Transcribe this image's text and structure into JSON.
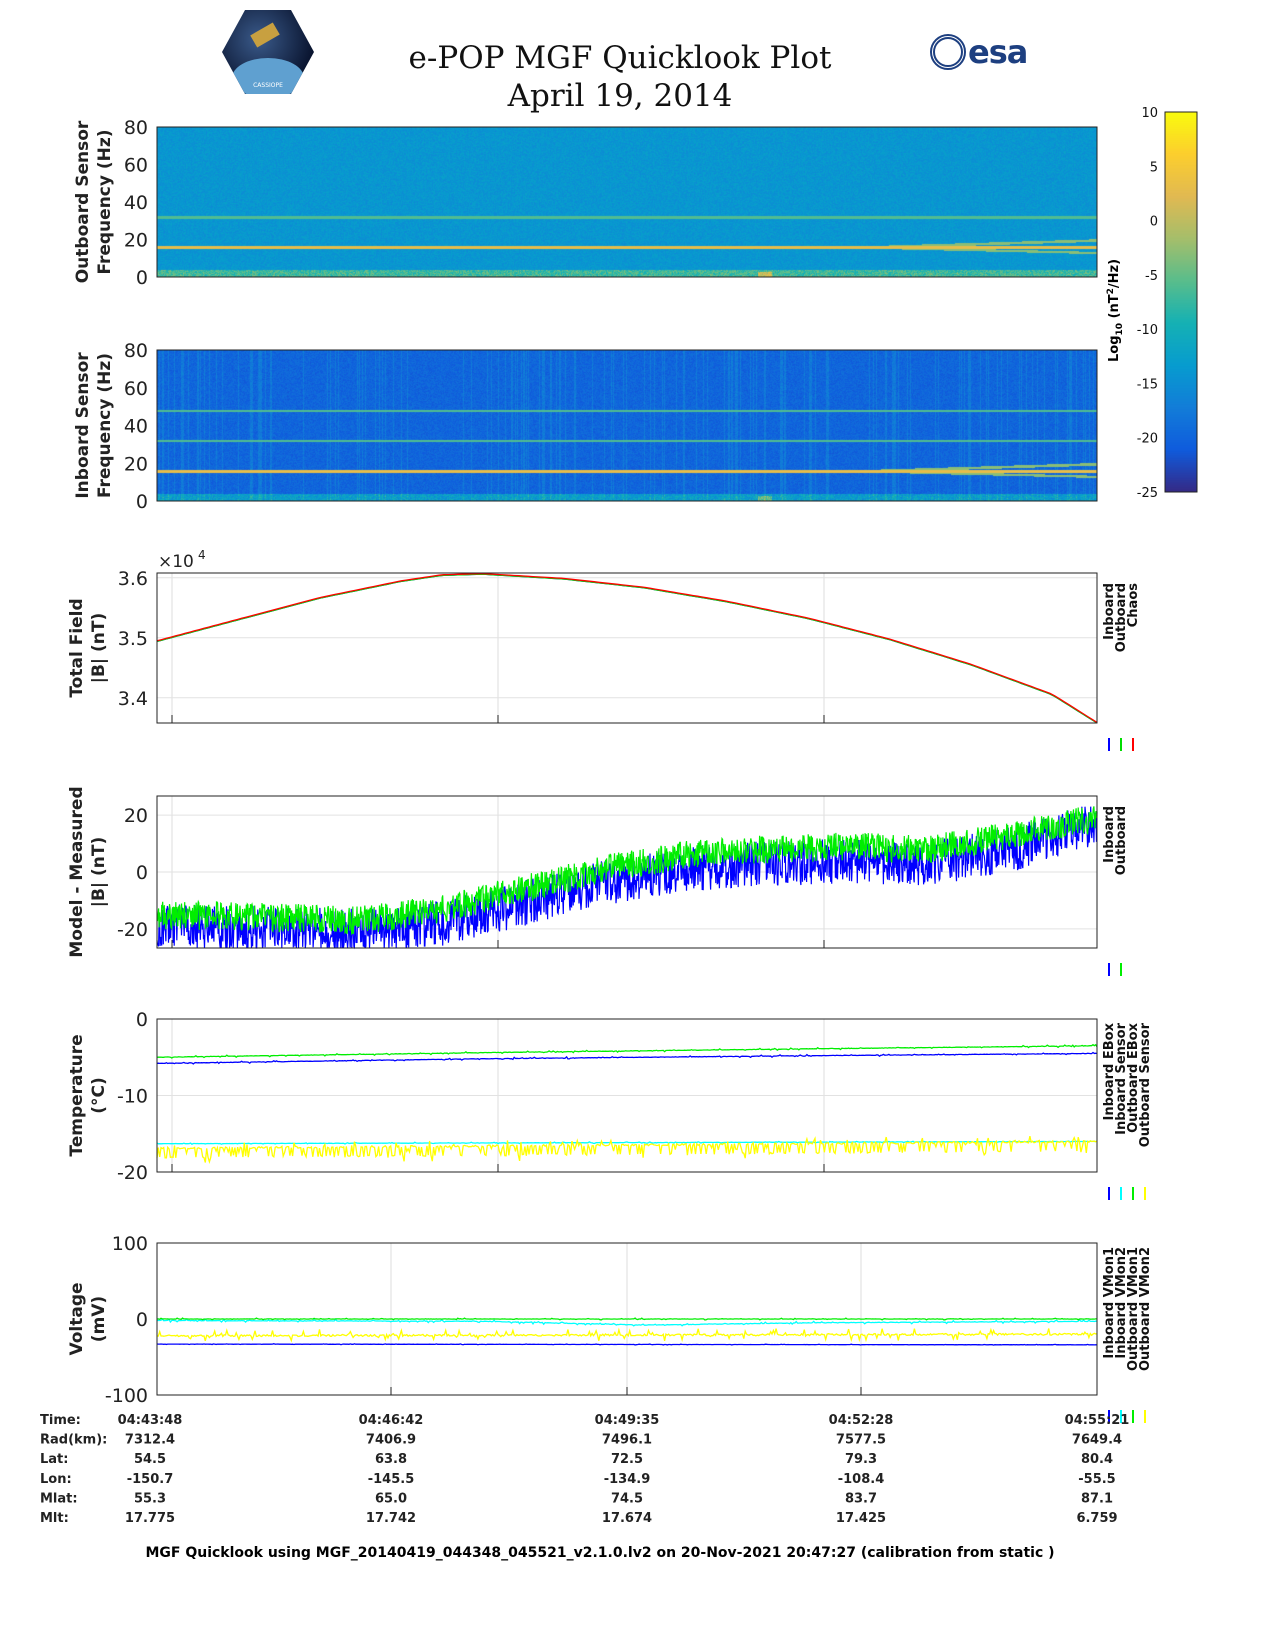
{
  "header": {
    "title": "e-POP MGF Quicklook Plot",
    "date": "April 19, 2014",
    "logo_left": "CASSIOPE",
    "logo_right": "esa"
  },
  "colorbar": {
    "label": "Log10 (nT2/Hz)",
    "label_main": "Log",
    "label_sub": "10",
    "label_rest": " (nT",
    "label_sup": "2",
    "label_end": "/Hz)",
    "ticks": [
      "10",
      "5",
      "0",
      "-5",
      "-10",
      "-15",
      "-20",
      "-25"
    ],
    "range": [
      -25,
      10
    ]
  },
  "chart_data": [
    {
      "type": "heatmap",
      "name": "outboard-spectrogram",
      "ylabel1": "Outboard Sensor",
      "ylabel2": "Frequency (Hz)",
      "ylim": [
        0,
        80
      ],
      "yticks": [
        "80",
        "60",
        "40",
        "20",
        "0"
      ],
      "lines_hz": [
        16,
        32
      ],
      "background_level": -14
    },
    {
      "type": "heatmap",
      "name": "inboard-spectrogram",
      "ylabel1": "Inboard Sensor",
      "ylabel2": "Frequency (Hz)",
      "ylim": [
        0,
        80
      ],
      "yticks": [
        "80",
        "60",
        "40",
        "20",
        "0"
      ],
      "lines_hz": [
        16,
        32,
        48
      ],
      "background_level": -20
    },
    {
      "type": "line",
      "name": "total-field",
      "ylabel1": "Total Field",
      "ylabel2": "|B| (nT)",
      "multiplier": "×10",
      "multiplier_exp": "4",
      "ylim": [
        3.358,
        3.608
      ],
      "yticks": [
        {
          "v": 3.6,
          "t": "3.6"
        },
        {
          "v": 3.5,
          "t": "3.5"
        },
        {
          "v": 3.4,
          "t": "3.4"
        }
      ],
      "legend": [
        "Inboard",
        "Outboard",
        "Chaos"
      ],
      "series": [
        {
          "name": "Inboard",
          "color": "#0000ff",
          "noise": 0,
          "x": [
            0,
            1,
            2,
            3,
            3.5,
            4,
            5,
            6,
            7,
            8,
            9,
            10,
            11,
            11.55
          ],
          "y": [
            3.494,
            3.53,
            3.566,
            3.594,
            3.604,
            3.606,
            3.598,
            3.583,
            3.56,
            3.532,
            3.497,
            3.455,
            3.405,
            3.358
          ]
        },
        {
          "name": "Outboard",
          "color": "#00dd00",
          "noise": 0,
          "x": [
            0,
            1,
            2,
            3,
            3.5,
            4,
            5,
            6,
            7,
            8,
            9,
            10,
            11,
            11.55
          ],
          "y": [
            3.494,
            3.53,
            3.566,
            3.594,
            3.604,
            3.606,
            3.598,
            3.583,
            3.56,
            3.532,
            3.497,
            3.455,
            3.405,
            3.358
          ]
        },
        {
          "name": "Chaos",
          "color": "#ff0000",
          "noise": 0,
          "x": [
            0,
            1,
            2,
            3,
            3.5,
            4,
            5,
            6,
            7,
            8,
            9,
            10,
            11,
            11.55
          ],
          "y": [
            3.495,
            3.531,
            3.567,
            3.595,
            3.605,
            3.607,
            3.599,
            3.584,
            3.561,
            3.533,
            3.498,
            3.456,
            3.406,
            3.359
          ]
        }
      ]
    },
    {
      "type": "line",
      "name": "model-minus-measured",
      "ylabel1": "Model - Measured",
      "ylabel2": "|B| (nT)",
      "ylim": [
        -26.7,
        26.7
      ],
      "yticks": [
        {
          "v": 20,
          "t": "20"
        },
        {
          "v": 0,
          "t": "0"
        },
        {
          "v": -20,
          "t": "-20"
        }
      ],
      "legend": [
        "Inboard",
        "Outboard"
      ],
      "series": [
        {
          "name": "Inboard",
          "color": "#0000ff",
          "noise": 8,
          "x": [
            0,
            1.5,
            2.5,
            3.5,
            4.5,
            5.5,
            6.5,
            7.5,
            8.5,
            9.5,
            10.5,
            11.55
          ],
          "y": [
            -19,
            -20,
            -21,
            -18,
            -11,
            -4,
            1,
            3,
            4,
            3,
            8,
            17
          ]
        },
        {
          "name": "Outboard",
          "color": "#00ee00",
          "noise": 5,
          "x": [
            0,
            1.5,
            2.5,
            3.5,
            4.5,
            5.5,
            6.5,
            7.5,
            8.5,
            9.5,
            10.5,
            11.55
          ],
          "y": [
            -15,
            -16,
            -17,
            -13,
            -6,
            1,
            6,
            8,
            9,
            8,
            13,
            19
          ]
        }
      ]
    },
    {
      "type": "line",
      "name": "temperature",
      "ylabel1": "Temperature",
      "ylabel2": "(°C)",
      "ylim": [
        -20,
        0
      ],
      "yticks": [
        {
          "v": 0,
          "t": "0"
        },
        {
          "v": -10,
          "t": "-10"
        },
        {
          "v": -20,
          "t": "-20"
        }
      ],
      "legend": [
        "Inboard EBox",
        "Inboard Sensor",
        "Outboard EBox",
        "Outboard Sensor"
      ],
      "series": [
        {
          "name": "Inboard EBox",
          "color": "#0000ff",
          "noise": 0.15,
          "x": [
            0,
            4,
            8,
            11.55
          ],
          "y": [
            -5.8,
            -5.2,
            -4.8,
            -4.5
          ]
        },
        {
          "name": "Inboard Sensor",
          "color": "#00ffff",
          "noise": 0.1,
          "x": [
            0,
            4,
            8,
            11.55
          ],
          "y": [
            -16.3,
            -16.2,
            -16.1,
            -16
          ]
        },
        {
          "name": "Outboard EBox",
          "color": "#00ee00",
          "noise": 0.15,
          "x": [
            0,
            4,
            8,
            11.55
          ],
          "y": [
            -5,
            -4.4,
            -3.9,
            -3.5
          ]
        },
        {
          "name": "Outboard Sensor",
          "color": "#ffff00",
          "noise": 0.8,
          "dips": true,
          "x": [
            0,
            4,
            8,
            11.55
          ],
          "y": [
            -16.9,
            -16.6,
            -16.3,
            -16
          ]
        }
      ]
    },
    {
      "type": "line",
      "name": "voltage",
      "ylabel1": "Voltage",
      "ylabel2": "(mV)",
      "ylim": [
        -100,
        100
      ],
      "yticks": [
        {
          "v": 100,
          "t": "100"
        },
        {
          "v": 0,
          "t": "0"
        },
        {
          "v": -100,
          "t": "-100"
        }
      ],
      "legend": [
        "Inboard VMon1",
        "Inboard VMon2",
        "Outboard VMon1",
        "Outboard VMon2"
      ],
      "series": [
        {
          "name": "Inboard VMon1",
          "color": "#0000ff",
          "noise": 0.6,
          "x": [
            0,
            11.55
          ],
          "y": [
            -33,
            -34
          ]
        },
        {
          "name": "Inboard VMon2",
          "color": "#00ffff",
          "noise": 2,
          "x": [
            0,
            4,
            6,
            8,
            11.55
          ],
          "y": [
            -2,
            -3,
            -8,
            -5,
            -3
          ]
        },
        {
          "name": "Outboard VMon1",
          "color": "#00ee00",
          "noise": 1.2,
          "x": [
            0,
            11.55
          ],
          "y": [
            0,
            0
          ]
        },
        {
          "name": "Outboard VMon2",
          "color": "#ffff00",
          "noise": 8,
          "x": [
            0,
            11.55
          ],
          "y": [
            -22,
            -20
          ]
        }
      ]
    }
  ],
  "table": {
    "labels": [
      "Time:",
      "Rad(km):",
      "Lat:",
      "Lon:",
      "Mlat:",
      "Mlt:"
    ],
    "columns": [
      [
        "04:43:48",
        "7312.4",
        "54.5",
        "-150.7",
        "55.3",
        "17.775"
      ],
      [
        "04:46:42",
        "7406.9",
        "63.8",
        "-145.5",
        "65.0",
        "17.742"
      ],
      [
        "04:49:35",
        "7496.1",
        "72.5",
        "-134.9",
        "74.5",
        "17.674"
      ],
      [
        "04:52:28",
        "7577.5",
        "79.3",
        "-108.4",
        "83.7",
        "17.425"
      ],
      [
        "04:55:21",
        "7649.4",
        "80.4",
        "-55.5",
        "87.1",
        "6.759"
      ]
    ]
  },
  "footer": "MGF Quicklook using MGF_20140419_044348_045521_v2.1.0.lv2 on 20-Nov-2021 20:47:27 (calibration from static )"
}
